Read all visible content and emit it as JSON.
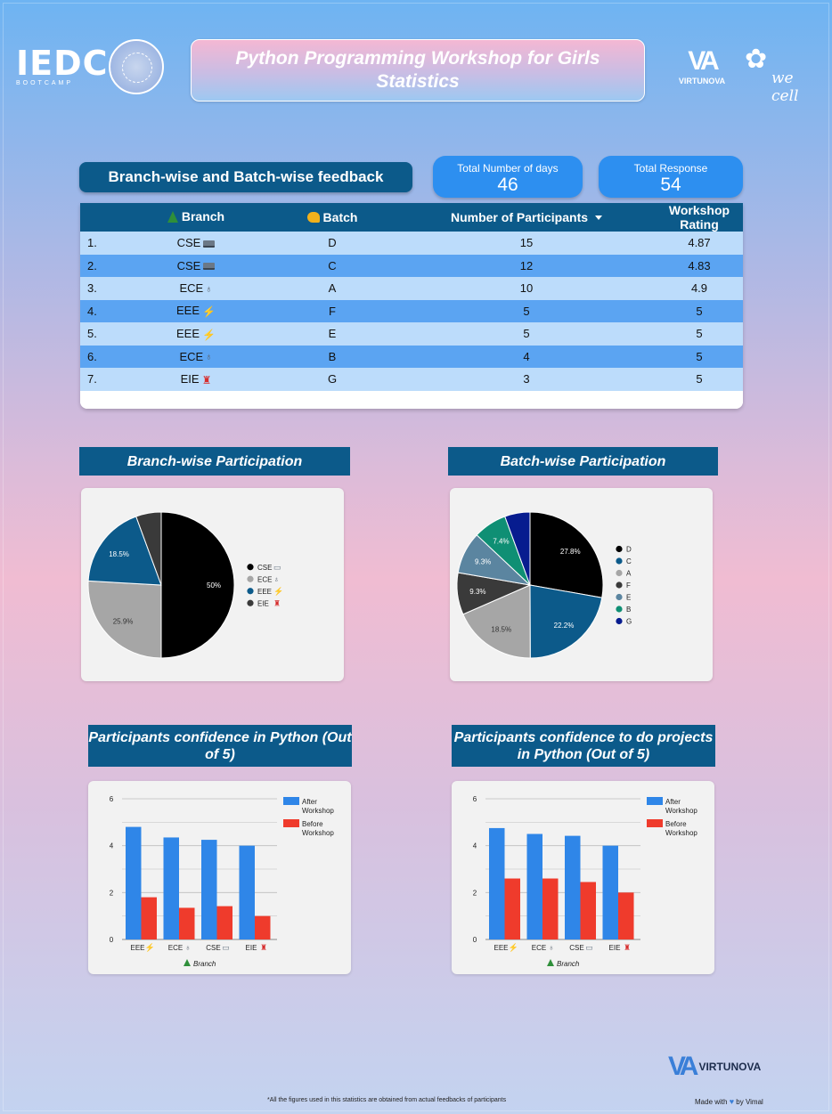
{
  "header": {
    "title": "Python Programming Workshop for Girls Statistics",
    "logo_left_big": "IEDC",
    "logo_left_small": "BOOTCAMP",
    "logo_right1": "VIRTUNOVA",
    "logo_right2": "we cell"
  },
  "feedback": {
    "title": "Branch-wise and Batch-wise feedback",
    "kpi_days_label": "Total Number of days",
    "kpi_days_value": "46",
    "kpi_resp_label": "Total Response",
    "kpi_resp_value": "54",
    "columns": [
      "Branch",
      "Batch",
      "Number of Participants",
      "Workshop Rating"
    ],
    "rows": [
      {
        "idx": "1.",
        "branch": "CSE",
        "icon": "laptop",
        "batch": "D",
        "participants": "15",
        "rating": "4.87"
      },
      {
        "idx": "2.",
        "branch": "CSE",
        "icon": "laptop",
        "batch": "C",
        "participants": "12",
        "rating": "4.83"
      },
      {
        "idx": "3.",
        "branch": "ECE",
        "icon": "stethoscope",
        "batch": "A",
        "participants": "10",
        "rating": "4.9"
      },
      {
        "idx": "4.",
        "branch": "EEE",
        "icon": "bolt",
        "batch": "F",
        "participants": "5",
        "rating": "5"
      },
      {
        "idx": "5.",
        "branch": "EEE",
        "icon": "bolt",
        "batch": "E",
        "participants": "5",
        "rating": "5"
      },
      {
        "idx": "6.",
        "branch": "ECE",
        "icon": "stethoscope",
        "batch": "B",
        "participants": "4",
        "rating": "5"
      },
      {
        "idx": "7.",
        "branch": "EIE",
        "icon": "microscope",
        "batch": "G",
        "participants": "3",
        "rating": "5"
      }
    ]
  },
  "chart_data": [
    {
      "type": "pie",
      "title": "Branch-wise Participation",
      "labels": [
        "CSE",
        "ECE",
        "EEE",
        "EIE"
      ],
      "values": [
        50,
        25.9,
        18.5,
        5.6
      ],
      "data_labels": [
        "50%",
        "25.9%",
        "18.5%",
        ""
      ],
      "colors": [
        "#000000",
        "#a6a6a6",
        "#0c5a8a",
        "#3a3a3a"
      ],
      "legend": "right"
    },
    {
      "type": "pie",
      "title": "Batch-wise Participation",
      "labels": [
        "D",
        "C",
        "A",
        "F",
        "E",
        "B",
        "G"
      ],
      "values": [
        27.8,
        22.2,
        18.5,
        9.3,
        9.3,
        7.4,
        5.6
      ],
      "data_labels": [
        "27.8%",
        "22.2%",
        "18.5%",
        "9.3%",
        "9.3%",
        "7.4%",
        ""
      ],
      "colors": [
        "#000000",
        "#0c5a8a",
        "#a6a6a6",
        "#3a3a3a",
        "#5b85a0",
        "#0f8f74",
        "#071c8f"
      ],
      "legend": "right"
    },
    {
      "type": "bar",
      "title": "Participants confidence in Python (Out of 5)",
      "categories": [
        "EEE",
        "ECE",
        "CSE",
        "EIE"
      ],
      "category_icons": [
        "bolt",
        "stethoscope",
        "laptop",
        "microscope"
      ],
      "xlabel": "Branch",
      "ylim": [
        0,
        6
      ],
      "yticks": [
        0,
        2,
        4,
        6
      ],
      "series": [
        {
          "name": "After Workshop",
          "color": "#2f86e8",
          "values": [
            4.8,
            4.35,
            4.25,
            4.0
          ]
        },
        {
          "name": "Before Workshop",
          "color": "#ef3b2c",
          "values": [
            1.8,
            1.35,
            1.42,
            1.0
          ]
        }
      ],
      "legend": "right"
    },
    {
      "type": "bar",
      "title": "Participants confidence to do projects in Python (Out of 5)",
      "categories": [
        "EEE",
        "ECE",
        "CSE",
        "EIE"
      ],
      "category_icons": [
        "bolt",
        "stethoscope",
        "laptop",
        "microscope"
      ],
      "xlabel": "Branch",
      "ylim": [
        0,
        6
      ],
      "yticks": [
        0,
        2,
        4,
        6
      ],
      "series": [
        {
          "name": "After Workshop",
          "color": "#2f86e8",
          "values": [
            4.75,
            4.5,
            4.42,
            4.0
          ]
        },
        {
          "name": "Before Workshop",
          "color": "#ef3b2c",
          "values": [
            2.6,
            2.6,
            2.45,
            2.0
          ]
        }
      ],
      "legend": "right"
    }
  ],
  "footer": {
    "brand": "VIRTUNOVA",
    "note": "*All the figures used in this statistics are obtained from actual feedbacks of participants",
    "made_with_prefix": "Made with",
    "made_with_suffix": "by Vimal"
  }
}
